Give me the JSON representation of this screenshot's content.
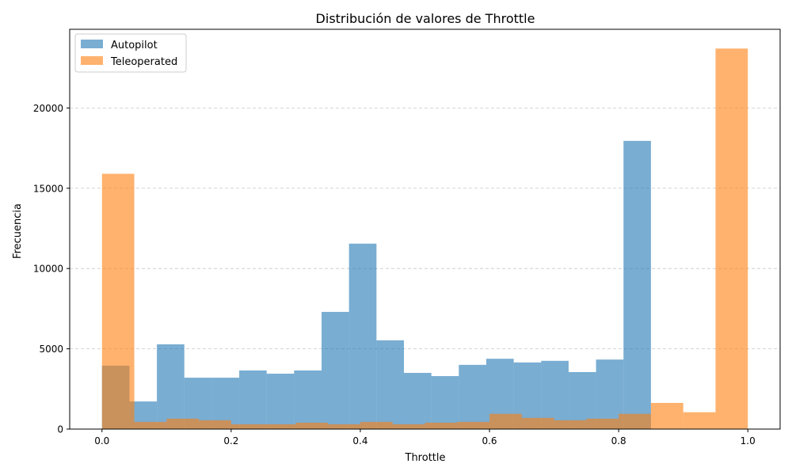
{
  "chart_data": {
    "type": "bar",
    "title": "Distribución de valores de Throttle",
    "xlabel": "Throttle",
    "ylabel": "Frecuencia",
    "xlim": [
      -0.05,
      1.05
    ],
    "ylim": [
      0,
      24900
    ],
    "x_ticks": [
      0.0,
      0.2,
      0.4,
      0.6,
      0.8,
      1.0
    ],
    "x_tick_labels": [
      "0.0",
      "0.2",
      "0.4",
      "0.6",
      "0.8",
      "1.0"
    ],
    "y_ticks": [
      0,
      5000,
      10000,
      15000,
      20000
    ],
    "y_tick_labels": [
      "0",
      "5000",
      "10000",
      "15000",
      "20000"
    ],
    "grid": "y-dashed",
    "legend_position": "top-left",
    "series": [
      {
        "name": "Autopilot",
        "color": "#1f77b4",
        "opacity": 0.6,
        "bin_edges": [
          0.0,
          0.0425,
          0.085,
          0.1275,
          0.17,
          0.2125,
          0.255,
          0.2975,
          0.34,
          0.3825,
          0.425,
          0.4675,
          0.51,
          0.5525,
          0.595,
          0.6375,
          0.68,
          0.7225,
          0.765,
          0.8075,
          0.85
        ],
        "values": [
          3950,
          1720,
          5280,
          3200,
          3200,
          3650,
          3450,
          3650,
          7300,
          11550,
          5530,
          3500,
          3300,
          4000,
          4380,
          4150,
          4250,
          3550,
          4330,
          17950
        ]
      },
      {
        "name": "Teleoperated",
        "color": "#ff7f0e",
        "opacity": 0.6,
        "bin_edges": [
          0.0,
          0.05,
          0.1,
          0.15,
          0.2,
          0.25,
          0.3,
          0.35,
          0.4,
          0.45,
          0.5,
          0.55,
          0.6,
          0.65,
          0.7,
          0.75,
          0.8,
          0.85,
          0.9,
          0.95,
          1.0
        ],
        "values": [
          15900,
          450,
          650,
          550,
          300,
          300,
          400,
          300,
          450,
          300,
          400,
          450,
          950,
          700,
          550,
          650,
          950,
          1630,
          1050,
          23700
        ]
      }
    ]
  }
}
